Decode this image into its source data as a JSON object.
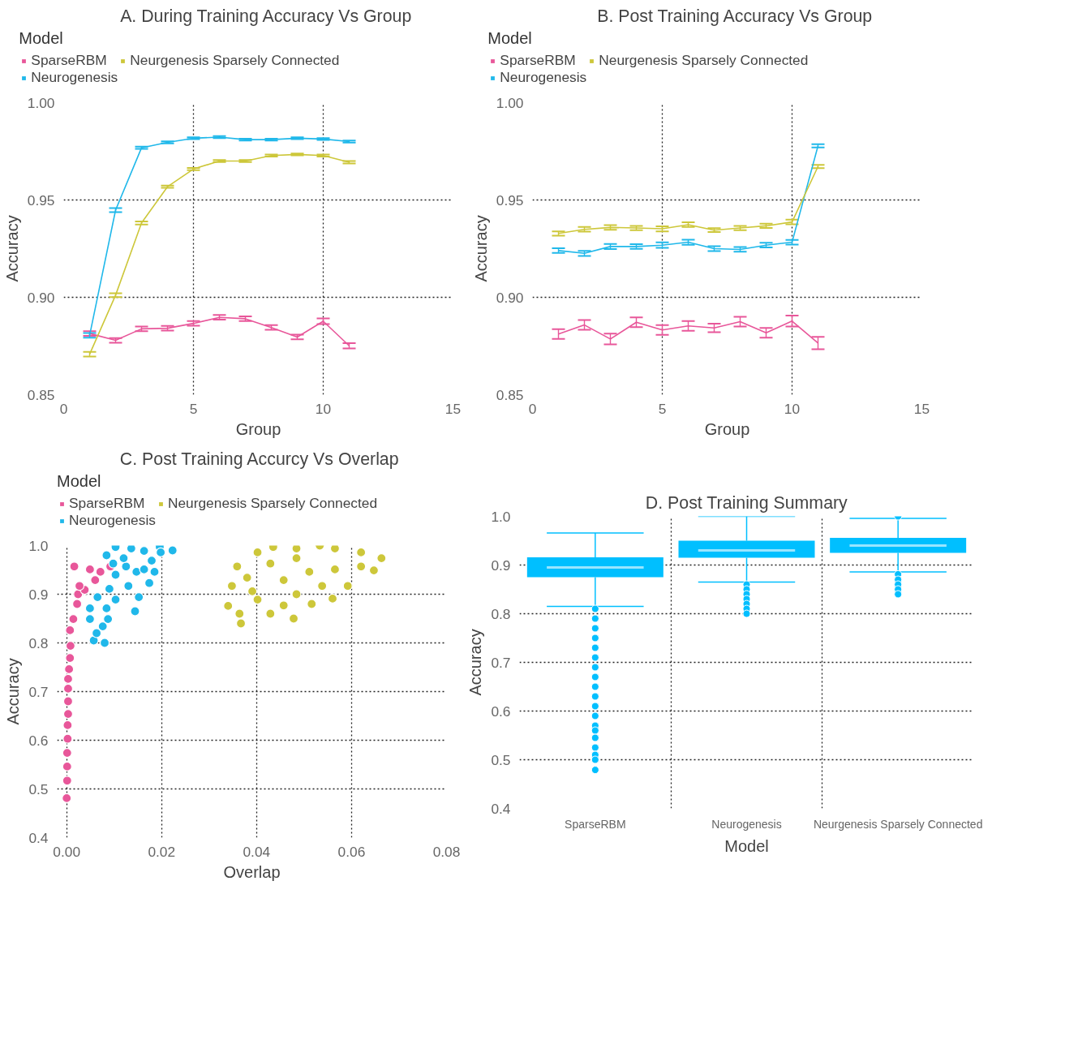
{
  "chart_data": [
    {
      "type": "line",
      "title": "A. During Training Accuracy Vs Group",
      "xlabel": "Group",
      "ylabel": "Accuracy",
      "legend_title": "Model",
      "legend": "top left",
      "grid": true,
      "marker": "none",
      "line_style": "solid",
      "xlim": [
        0,
        15
      ],
      "xticks": [
        0,
        5,
        10,
        15
      ],
      "ylim": [
        0.85,
        1.0
      ],
      "yticks": [
        {
          "value": 0.85,
          "label": "0.85"
        },
        {
          "value": 0.9,
          "label": "0.90"
        },
        {
          "value": 0.95,
          "label": "0.95"
        },
        {
          "value": 1.0,
          "label": "1.00"
        }
      ],
      "x": [
        1,
        2,
        3,
        4,
        5,
        6,
        7,
        8,
        9,
        10,
        11
      ],
      "series": [
        {
          "name": "SparseRBM",
          "color": "#e8579a",
          "values": [
            0.8814,
            0.8779,
            0.8838,
            0.8841,
            0.8866,
            0.8897,
            0.889,
            0.8845,
            0.8796,
            0.8877,
            0.8751
          ],
          "errors": [
            0.0012,
            0.0012,
            0.0012,
            0.0012,
            0.0012,
            0.0012,
            0.0012,
            0.0012,
            0.0012,
            0.0015,
            0.0014
          ]
        },
        {
          "name": "Neurogenesis",
          "color": "#20b8ea",
          "values": [
            0.8805,
            0.9448,
            0.9768,
            0.9796,
            0.9817,
            0.9823,
            0.981,
            0.981,
            0.9817,
            0.9813,
            0.98
          ],
          "errors": [
            0.0012,
            0.001,
            0.0006,
            0.0005,
            0.0005,
            0.0005,
            0.0005,
            0.0005,
            0.0005,
            0.0005,
            0.0005
          ]
        },
        {
          "name": "Neurgenesis Sparsely Connected",
          "color": "#cdc73a",
          "values": [
            0.8708,
            0.9011,
            0.9382,
            0.9568,
            0.9659,
            0.97,
            0.97,
            0.9728,
            0.9734,
            0.9728,
            0.9694
          ],
          "errors": [
            0.0012,
            0.001,
            0.0008,
            0.0006,
            0.0006,
            0.0005,
            0.0005,
            0.0005,
            0.0005,
            0.0005,
            0.0006
          ]
        }
      ]
    },
    {
      "type": "line",
      "title": "B. Post Training Accuracy Vs Group",
      "xlabel": "Group",
      "ylabel": "Accuracy",
      "legend_title": "Model",
      "legend": "top left",
      "grid": true,
      "marker": "none",
      "line_style": "solid",
      "xlim": [
        0,
        15
      ],
      "xticks": [
        0,
        5,
        10,
        15
      ],
      "ylim": [
        0.85,
        1.0
      ],
      "yticks": [
        {
          "value": 0.85,
          "label": "0.85"
        },
        {
          "value": 0.9,
          "label": "0.90"
        },
        {
          "value": 0.95,
          "label": "0.95"
        },
        {
          "value": 1.0,
          "label": "1.00"
        }
      ],
      "x": [
        1,
        2,
        3,
        4,
        5,
        6,
        7,
        8,
        9,
        10,
        11
      ],
      "series": [
        {
          "name": "SparseRBM",
          "color": "#e8579a",
          "values": [
            0.8811,
            0.8858,
            0.8786,
            0.8872,
            0.8832,
            0.8853,
            0.8843,
            0.8875,
            0.8818,
            0.8878,
            0.8765
          ],
          "errors": [
            0.0025,
            0.0025,
            0.0028,
            0.0025,
            0.0025,
            0.0025,
            0.0022,
            0.0025,
            0.0025,
            0.0028,
            0.0032
          ]
        },
        {
          "name": "Neurogenesis",
          "color": "#20b8ea",
          "values": [
            0.924,
            0.9226,
            0.9261,
            0.9261,
            0.9268,
            0.9283,
            0.925,
            0.9246,
            0.9268,
            0.9283,
            0.9778
          ],
          "errors": [
            0.0012,
            0.0013,
            0.0013,
            0.0012,
            0.0014,
            0.0013,
            0.0012,
            0.0012,
            0.0012,
            0.0012,
            0.0008
          ]
        },
        {
          "name": "Neurgenesis Sparsely Connected",
          "color": "#cdc73a",
          "values": [
            0.9328,
            0.9349,
            0.9359,
            0.9356,
            0.9352,
            0.9373,
            0.9345,
            0.9356,
            0.9367,
            0.9387,
            0.9672
          ],
          "errors": [
            0.0011,
            0.0012,
            0.0012,
            0.0011,
            0.0013,
            0.0012,
            0.001,
            0.0011,
            0.0011,
            0.0012,
            0.0008
          ]
        }
      ]
    },
    {
      "type": "scatter",
      "title": "C. Post Training Accurcy Vs Overlap",
      "xlabel": "Overlap",
      "ylabel": "Accuracy",
      "legend_title": "Model",
      "legend": "top left",
      "grid": true,
      "marker": "circle",
      "xlim": [
        -0.002,
        0.08
      ],
      "xticks": [
        {
          "value": 0,
          "label": "0.00"
        },
        {
          "value": 0.02,
          "label": "0.02"
        },
        {
          "value": 0.04,
          "label": "0.04"
        },
        {
          "value": 0.06,
          "label": "0.06"
        },
        {
          "value": 0.08,
          "label": "0.08"
        }
      ],
      "ylim": [
        0.4,
        1.0
      ],
      "yticks": [
        0.4,
        0.5,
        0.6,
        0.7,
        0.8,
        0.9,
        {
          "value": 1.0,
          "label": "1.0"
        }
      ],
      "series": [
        {
          "name": "SparseRBM",
          "color": "#e8579a",
          "x": [
            0.0,
            0.0001,
            0.0001,
            0.0001,
            0.0002,
            0.0002,
            0.0003,
            0.0003,
            0.0003,
            0.0003,
            0.0005,
            0.0007,
            0.0008,
            0.0007,
            0.0014,
            0.0022,
            0.0024,
            0.0038,
            0.006,
            0.0071,
            0.0092,
            0.0049,
            0.0016,
            0.0027
          ],
          "values": [
            0.481,
            0.517,
            0.546,
            0.574,
            0.603,
            0.631,
            0.654,
            0.68,
            0.706,
            0.726,
            0.746,
            0.769,
            0.794,
            0.826,
            0.849,
            0.88,
            0.9,
            0.909,
            0.929,
            0.946,
            0.957,
            0.951,
            0.957,
            0.917
          ]
        },
        {
          "name": "Neurogenesis",
          "color": "#20b8ea",
          "x": [
            0.0057,
            0.008,
            0.0063,
            0.0049,
            0.0076,
            0.0087,
            0.0049,
            0.0084,
            0.0144,
            0.0065,
            0.0103,
            0.0152,
            0.009,
            0.013,
            0.0174,
            0.0103,
            0.0147,
            0.0185,
            0.0125,
            0.0163,
            0.0084,
            0.0103,
            0.0136,
            0.0163,
            0.0196,
            0.0198,
            0.0223,
            0.012,
            0.0179,
            0.0098
          ],
          "values": [
            0.805,
            0.8,
            0.82,
            0.849,
            0.834,
            0.849,
            0.871,
            0.871,
            0.865,
            0.894,
            0.889,
            0.894,
            0.911,
            0.917,
            0.923,
            0.94,
            0.946,
            0.946,
            0.957,
            0.951,
            0.98,
            0.997,
            0.994,
            0.989,
            0.997,
            0.986,
            0.99,
            0.974,
            0.969,
            0.963
          ]
        },
        {
          "name": "Neurgenesis Sparsely Connected",
          "color": "#cdc73a",
          "x": [
            0.034,
            0.0364,
            0.0367,
            0.0429,
            0.0478,
            0.0348,
            0.0359,
            0.0402,
            0.0435,
            0.0484,
            0.0533,
            0.0565,
            0.062,
            0.0663,
            0.0647,
            0.0592,
            0.056,
            0.0516,
            0.0457,
            0.0402,
            0.0457,
            0.0511,
            0.0565,
            0.062,
            0.0429,
            0.0484,
            0.038,
            0.0538,
            0.0484,
            0.0391
          ],
          "values": [
            0.876,
            0.86,
            0.84,
            0.86,
            0.85,
            0.917,
            0.957,
            0.986,
            0.997,
            0.994,
            1.0,
            0.994,
            0.986,
            0.974,
            0.949,
            0.917,
            0.891,
            0.88,
            0.877,
            0.889,
            0.929,
            0.946,
            0.951,
            0.957,
            0.963,
            0.974,
            0.934,
            0.917,
            0.9,
            0.906
          ]
        }
      ]
    },
    {
      "type": "box",
      "title": "D. Post Training Summary",
      "xlabel": "Model",
      "ylabel": "Accuracy",
      "grid": true,
      "categories": [
        "SparseRBM",
        "Neurogenesis",
        "Neurgenesis Sparsely Connected"
      ],
      "ylim": [
        0.4,
        1.0
      ],
      "yticks": [
        0.4,
        0.5,
        0.6,
        0.7,
        0.8,
        0.9,
        {
          "value": 1.0,
          "label": "1.0"
        }
      ],
      "series": [
        {
          "color": "#00bfff",
          "boxes": [
            {
              "low": 0.815,
              "q1": 0.875,
              "median": 0.895,
              "q3": 0.916,
              "high": 0.966,
              "outliers": [
                0.81,
                0.79,
                0.77,
                0.75,
                0.73,
                0.71,
                0.69,
                0.67,
                0.65,
                0.63,
                0.61,
                0.59,
                0.57,
                0.56,
                0.545,
                0.525,
                0.51,
                0.5,
                0.479
              ]
            },
            {
              "low": 0.865,
              "q1": 0.915,
              "median": 0.93,
              "q3": 0.95,
              "high": 1.0,
              "outliers": [
                0.86,
                0.85,
                0.84,
                0.83,
                0.82,
                0.81,
                0.8
              ]
            },
            {
              "low": 0.886,
              "q1": 0.925,
              "median": 0.94,
              "q3": 0.956,
              "high": 0.996,
              "outliers": [
                1.0,
                0.881,
                0.87,
                0.86,
                0.85,
                0.84
              ]
            }
          ]
        }
      ]
    }
  ]
}
